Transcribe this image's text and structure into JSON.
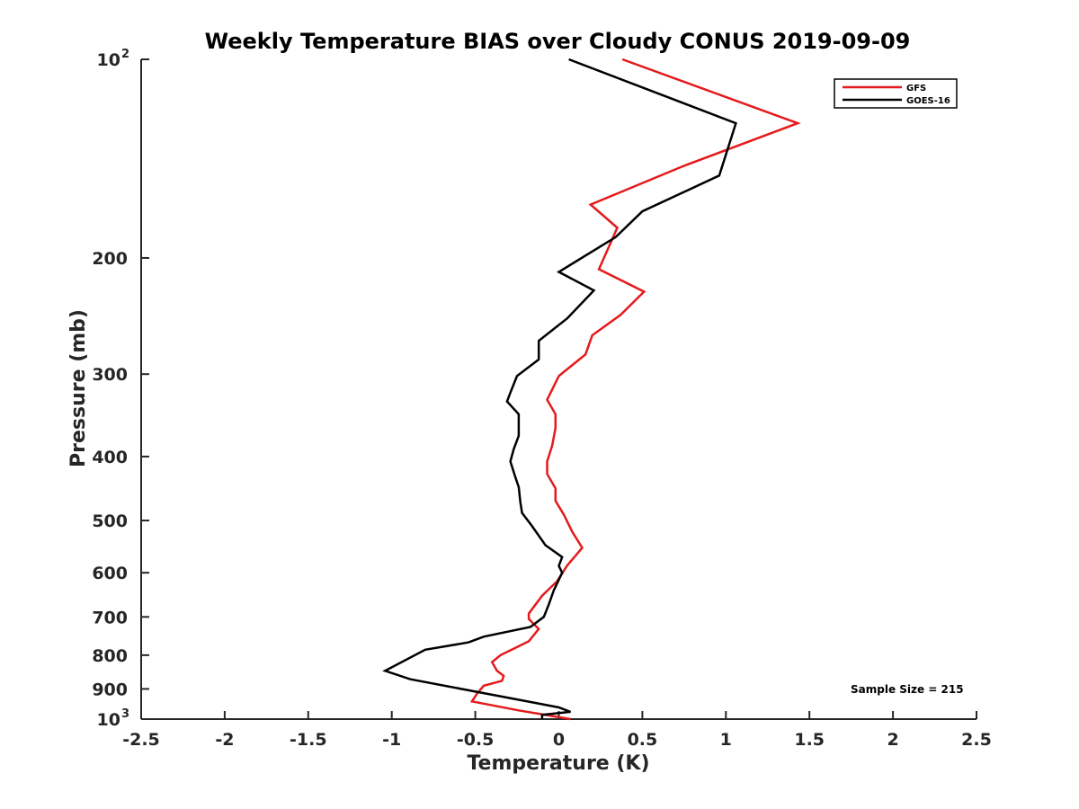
{
  "chart_data": {
    "type": "line",
    "title": "Weekly Temperature BIAS over Cloudy CONUS 2019-09-09",
    "xlabel": "Temperature (K)",
    "ylabel": "Pressure (mb)",
    "xlim": [
      -2.5,
      2.5
    ],
    "ylim": [
      100,
      1000
    ],
    "yscale": "log",
    "y_reversed": true,
    "grid": false,
    "legend_position": "top-right",
    "x_ticks": [
      -2.5,
      -2,
      -1.5,
      -1,
      -0.5,
      0,
      0.5,
      1,
      1.5,
      2,
      2.5
    ],
    "x_tick_labels": [
      "-2.5",
      "-2",
      "-1.5",
      "-1",
      "-0.5",
      "0",
      "0.5",
      "1",
      "1.5",
      "2",
      "2.5"
    ],
    "y_ticks": [
      100,
      200,
      300,
      400,
      500,
      600,
      700,
      800,
      900,
      1000
    ],
    "y_tick_labels": [
      {
        "base": "10",
        "exp": "2"
      },
      {
        "base": "200"
      },
      {
        "base": "300"
      },
      {
        "base": "400"
      },
      {
        "base": "500"
      },
      {
        "base": "600"
      },
      {
        "base": "700"
      },
      {
        "base": "800"
      },
      {
        "base": "900"
      },
      {
        "base": "10",
        "exp": "3"
      }
    ],
    "annotation": "Sample Size = 215",
    "series": [
      {
        "name": "GFS",
        "color": "#e41a1c",
        "points": [
          [
            0.38,
            100
          ],
          [
            1.43,
            125
          ],
          [
            0.75,
            145
          ],
          [
            0.19,
            166
          ],
          [
            0.35,
            180
          ],
          [
            0.24,
            208
          ],
          [
            0.51,
            225
          ],
          [
            0.37,
            244
          ],
          [
            0.2,
            262
          ],
          [
            0.16,
            280
          ],
          [
            0.0,
            302
          ],
          [
            -0.07,
            328
          ],
          [
            -0.02,
            345
          ],
          [
            -0.02,
            362
          ],
          [
            -0.04,
            385
          ],
          [
            -0.07,
            407
          ],
          [
            -0.07,
            425
          ],
          [
            -0.02,
            447
          ],
          [
            -0.02,
            467
          ],
          [
            0.03,
            490
          ],
          [
            0.08,
            520
          ],
          [
            0.14,
            550
          ],
          [
            0.05,
            585
          ],
          [
            -0.01,
            618
          ],
          [
            -0.1,
            650
          ],
          [
            -0.18,
            692
          ],
          [
            -0.18,
            705
          ],
          [
            -0.12,
            730
          ],
          [
            -0.18,
            762
          ],
          [
            -0.26,
            780
          ],
          [
            -0.35,
            800
          ],
          [
            -0.4,
            820
          ],
          [
            -0.37,
            845
          ],
          [
            -0.33,
            860
          ],
          [
            -0.34,
            875
          ],
          [
            -0.45,
            890
          ],
          [
            -0.49,
            915
          ],
          [
            -0.52,
            940
          ],
          [
            -0.24,
            970
          ],
          [
            0.07,
            1000
          ]
        ]
      },
      {
        "name": "GOES-16",
        "color": "#000000",
        "points": [
          [
            0.06,
            100
          ],
          [
            1.06,
            125
          ],
          [
            0.96,
            150
          ],
          [
            0.5,
            170
          ],
          [
            0.34,
            186
          ],
          [
            0.0,
            210
          ],
          [
            0.21,
            224
          ],
          [
            0.05,
            247
          ],
          [
            -0.12,
            267
          ],
          [
            -0.12,
            285
          ],
          [
            -0.25,
            302
          ],
          [
            -0.29,
            320
          ],
          [
            -0.31,
            330
          ],
          [
            -0.24,
            345
          ],
          [
            -0.24,
            372
          ],
          [
            -0.27,
            390
          ],
          [
            -0.29,
            407
          ],
          [
            -0.26,
            430
          ],
          [
            -0.24,
            445
          ],
          [
            -0.23,
            470
          ],
          [
            -0.22,
            487
          ],
          [
            -0.16,
            510
          ],
          [
            -0.08,
            545
          ],
          [
            0.02,
            568
          ],
          [
            0.0,
            586
          ],
          [
            0.02,
            600
          ],
          [
            -0.03,
            638
          ],
          [
            -0.06,
            670
          ],
          [
            -0.09,
            700
          ],
          [
            -0.17,
            725
          ],
          [
            -0.45,
            750
          ],
          [
            -0.54,
            765
          ],
          [
            -0.8,
            785
          ],
          [
            -1.04,
            845
          ],
          [
            -0.89,
            870
          ],
          [
            -0.14,
            945
          ],
          [
            0.0,
            960
          ],
          [
            0.07,
            975
          ],
          [
            -0.1,
            985
          ],
          [
            -0.1,
            1000
          ]
        ]
      }
    ]
  }
}
